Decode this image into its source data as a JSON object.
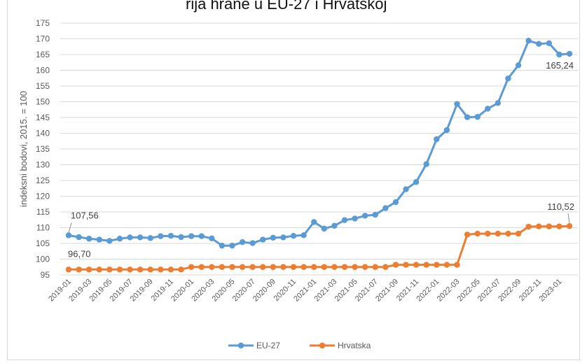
{
  "title_fragment": "rija hrane u EU-27 i Hrvatskoj",
  "chart_data": {
    "type": "line",
    "ylabel": "indeksni bodovi, 2015. = 100",
    "ylim": [
      95,
      175
    ],
    "yticks": [
      "175",
      "170",
      "165",
      "160",
      "155",
      "150",
      "145",
      "140",
      "135",
      "130",
      "125",
      "120",
      "115",
      "110",
      "105",
      "100",
      "95"
    ],
    "grid": true,
    "legend_position": "bottom",
    "x": [
      "2019-01",
      "2019-02",
      "2019-03",
      "2019-04",
      "2019-05",
      "2019-06",
      "2019-07",
      "2019-08",
      "2019-09",
      "2019-10",
      "2019-11",
      "2019-12",
      "2020-01",
      "2020-02",
      "2020-03",
      "2020-04",
      "2020-05",
      "2020-06",
      "2020-07",
      "2020-08",
      "2020-09",
      "2020-10",
      "2020-11",
      "2020-12",
      "2021-01",
      "2021-02",
      "2021-03",
      "2021-04",
      "2021-05",
      "2021-06",
      "2021-07",
      "2021-08",
      "2021-09",
      "2021-10",
      "2021-11",
      "2021-12",
      "2022-01",
      "2022-02",
      "2022-03",
      "2022-04",
      "2022-05",
      "2022-06",
      "2022-07",
      "2022-08",
      "2022-09",
      "2022-10",
      "2022-11",
      "2022-12",
      "2023-01",
      "2023-02"
    ],
    "xtick_labels": [
      "2019-01",
      "2019-03",
      "2019-05",
      "2019-07",
      "2019-09",
      "2019-11",
      "2020-01",
      "2020-03",
      "2020-05",
      "2020-07",
      "2020-09",
      "2020-11",
      "2021-01",
      "2021-03",
      "2021-05",
      "2021-07",
      "2021-09",
      "2021-11",
      "2022-01",
      "2022-03",
      "2022-05",
      "2022-07",
      "2022-09",
      "2022-11",
      "2023-01"
    ],
    "series": [
      {
        "name": "EU-27",
        "color": "#5b9bd5",
        "values": [
          107.56,
          107.0,
          106.5,
          106.2,
          105.8,
          106.5,
          106.9,
          106.9,
          106.7,
          107.3,
          107.4,
          107.0,
          107.3,
          107.3,
          106.6,
          104.3,
          104.3,
          105.4,
          105.1,
          106.2,
          106.8,
          106.9,
          107.4,
          107.6,
          111.8,
          109.7,
          110.6,
          112.4,
          112.9,
          113.8,
          114.1,
          116.2,
          118.1,
          122.2,
          124.5,
          130.2,
          138.1,
          141.0,
          149.3,
          145.1,
          145.2,
          147.8,
          149.6,
          157.4,
          161.6,
          169.4,
          168.4,
          168.6,
          165.0,
          165.24
        ]
      },
      {
        "name": "Hrvatska",
        "color": "#ed7d31",
        "values": [
          96.7,
          96.7,
          96.7,
          96.7,
          96.7,
          96.7,
          96.7,
          96.7,
          96.7,
          96.7,
          96.7,
          96.7,
          97.5,
          97.5,
          97.5,
          97.5,
          97.5,
          97.5,
          97.5,
          97.5,
          97.5,
          97.5,
          97.5,
          97.5,
          97.5,
          97.5,
          97.5,
          97.5,
          97.5,
          97.5,
          97.5,
          97.5,
          98.2,
          98.2,
          98.2,
          98.2,
          98.2,
          98.2,
          98.2,
          107.8,
          108.1,
          108.1,
          108.1,
          108.1,
          108.1,
          110.3,
          110.4,
          110.4,
          110.4,
          110.52
        ]
      }
    ],
    "annotations": [
      {
        "series": 0,
        "index": 0,
        "text": "107,56"
      },
      {
        "series": 1,
        "index": 0,
        "text": "96,70"
      },
      {
        "series": 0,
        "index": 49,
        "text": "165,24"
      },
      {
        "series": 1,
        "index": 49,
        "text": "110,52"
      }
    ]
  }
}
